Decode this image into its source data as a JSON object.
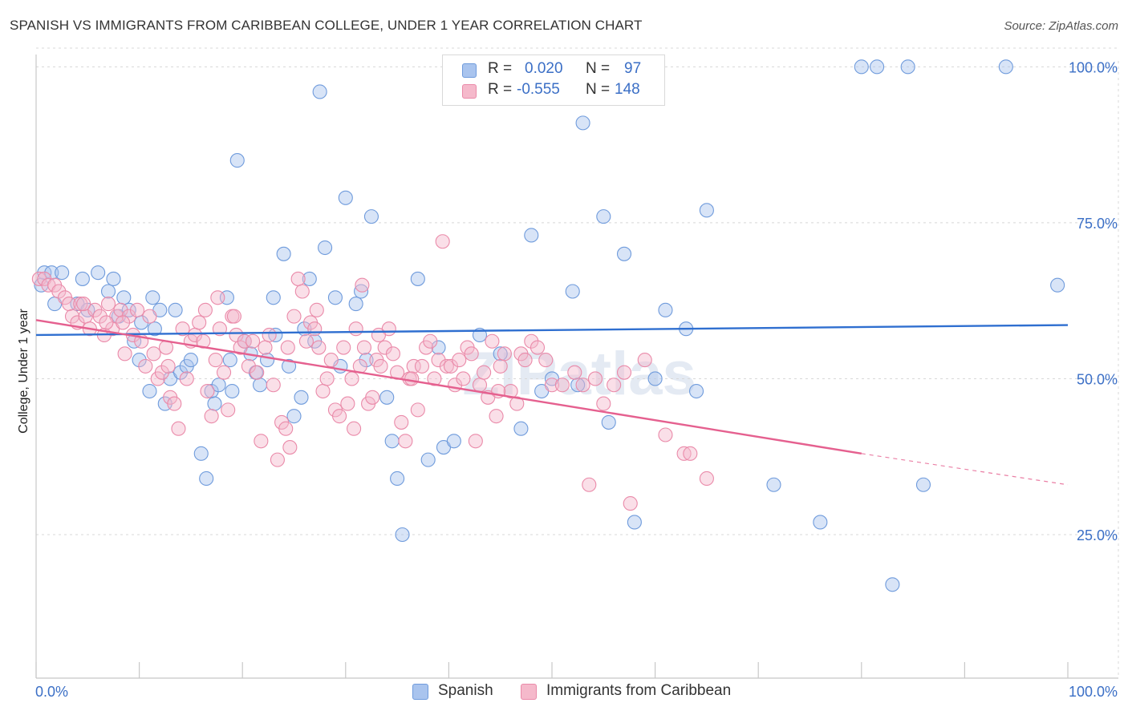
{
  "title": "SPANISH VS IMMIGRANTS FROM CARIBBEAN COLLEGE, UNDER 1 YEAR CORRELATION CHART",
  "source": "Source: ZipAtlas.com",
  "watermark": "ZIPatlas",
  "legend": {
    "r_label": "R =",
    "n_label": "N =",
    "rows": [
      {
        "r": "0.020",
        "n": "97"
      },
      {
        "r": "-0.555",
        "n": "148"
      }
    ]
  },
  "chart_data": {
    "type": "scatter",
    "title": "SPANISH VS IMMIGRANTS FROM CARIBBEAN COLLEGE, UNDER 1 YEAR CORRELATION CHART",
    "xlabel": "",
    "ylabel": "College, Under 1 year",
    "xlim": [
      0,
      100
    ],
    "ylim": [
      2,
      103
    ],
    "x_tick_labels": [
      "0.0%",
      "100.0%"
    ],
    "y_ticks": [
      25,
      50,
      75,
      100
    ],
    "y_tick_labels": [
      "25.0%",
      "50.0%",
      "75.0%",
      "100.0%"
    ],
    "grid": true,
    "legend_position": "top-center",
    "colors": {
      "Spanish": {
        "fill": "#a9c4ee",
        "stroke": "#6f9bdc",
        "line": "#2f6fd0"
      },
      "Immigrants from Caribbean": {
        "fill": "#f5b9cb",
        "stroke": "#ea8aa9",
        "line": "#e5608f"
      },
      "tick_label": "#3b6fc6"
    },
    "series": [
      {
        "name": "Spanish",
        "r": 0.02,
        "n": 97,
        "trend": {
          "x": [
            0,
            100
          ],
          "y": [
            57.0,
            58.6
          ]
        },
        "points": [
          [
            0.5,
            65
          ],
          [
            0.8,
            67
          ],
          [
            1.5,
            67
          ],
          [
            2.5,
            67
          ],
          [
            1.8,
            62
          ],
          [
            4,
            62
          ],
          [
            5,
            61
          ],
          [
            4.5,
            66
          ],
          [
            6,
            67
          ],
          [
            7,
            64
          ],
          [
            7.5,
            66
          ],
          [
            8,
            60
          ],
          [
            9,
            61
          ],
          [
            8.5,
            63
          ],
          [
            9.5,
            56
          ],
          [
            10,
            53
          ],
          [
            10.2,
            59
          ],
          [
            11,
            48
          ],
          [
            11.3,
            63
          ],
          [
            11.5,
            58
          ],
          [
            12,
            61
          ],
          [
            12.5,
            46
          ],
          [
            13,
            50
          ],
          [
            13.5,
            61
          ],
          [
            14,
            51
          ],
          [
            14.6,
            52
          ],
          [
            15,
            53
          ],
          [
            16,
            38
          ],
          [
            16.5,
            34
          ],
          [
            17,
            48
          ],
          [
            17.3,
            46
          ],
          [
            17.7,
            49
          ],
          [
            18.5,
            63
          ],
          [
            18.8,
            53
          ],
          [
            19,
            48
          ],
          [
            19.5,
            85
          ],
          [
            20.2,
            56
          ],
          [
            20.8,
            54
          ],
          [
            21.3,
            51
          ],
          [
            21.7,
            49
          ],
          [
            22.4,
            53
          ],
          [
            23,
            63
          ],
          [
            23.2,
            57
          ],
          [
            24,
            70
          ],
          [
            24.5,
            52
          ],
          [
            25,
            44
          ],
          [
            25.7,
            47
          ],
          [
            26,
            58
          ],
          [
            26.5,
            66
          ],
          [
            27,
            56
          ],
          [
            27.5,
            96
          ],
          [
            28,
            71
          ],
          [
            29,
            63
          ],
          [
            29.5,
            52
          ],
          [
            30,
            79
          ],
          [
            31,
            62
          ],
          [
            31.5,
            64
          ],
          [
            32,
            53
          ],
          [
            32.5,
            76
          ],
          [
            34,
            47
          ],
          [
            34.5,
            40
          ],
          [
            35,
            34
          ],
          [
            35.5,
            25
          ],
          [
            37,
            66
          ],
          [
            38,
            37
          ],
          [
            39,
            55
          ],
          [
            39.5,
            39
          ],
          [
            40.5,
            40
          ],
          [
            43,
            57
          ],
          [
            45,
            54
          ],
          [
            47,
            42
          ],
          [
            48,
            73
          ],
          [
            49,
            48
          ],
          [
            50,
            50
          ],
          [
            52,
            64
          ],
          [
            52.5,
            49
          ],
          [
            53,
            91
          ],
          [
            55,
            76
          ],
          [
            55.5,
            43
          ],
          [
            57,
            70
          ],
          [
            58,
            27
          ],
          [
            60,
            50
          ],
          [
            61,
            61
          ],
          [
            63,
            58
          ],
          [
            64,
            48
          ],
          [
            65,
            77
          ],
          [
            71.5,
            33
          ],
          [
            76,
            27
          ],
          [
            80,
            100
          ],
          [
            81.5,
            100
          ],
          [
            83,
            17
          ],
          [
            84.5,
            100
          ],
          [
            86,
            33
          ],
          [
            94,
            100
          ],
          [
            99,
            65
          ]
        ]
      },
      {
        "name": "Immigrants from Caribbean",
        "r": -0.555,
        "n": 148,
        "trend": {
          "x": [
            0,
            80
          ],
          "y": [
            59.4,
            38.0
          ]
        },
        "trend_dashed": {
          "x": [
            80,
            100
          ],
          "y": [
            38.0,
            33.0
          ]
        },
        "points": [
          [
            0.3,
            66
          ],
          [
            0.8,
            66
          ],
          [
            1.2,
            65
          ],
          [
            1.8,
            65
          ],
          [
            2.2,
            64
          ],
          [
            2.8,
            63
          ],
          [
            3.2,
            62
          ],
          [
            3.5,
            60
          ],
          [
            4,
            59
          ],
          [
            4.3,
            62
          ],
          [
            4.8,
            60
          ],
          [
            5.2,
            58
          ],
          [
            5.7,
            61
          ],
          [
            6.2,
            60
          ],
          [
            6.6,
            57
          ],
          [
            7,
            62
          ],
          [
            7.4,
            58
          ],
          [
            7.8,
            60
          ],
          [
            8.2,
            61
          ],
          [
            8.6,
            54
          ],
          [
            9,
            60
          ],
          [
            9.4,
            57
          ],
          [
            9.8,
            61
          ],
          [
            10.2,
            56
          ],
          [
            10.6,
            52
          ],
          [
            11,
            60
          ],
          [
            11.4,
            54
          ],
          [
            11.8,
            50
          ],
          [
            12.2,
            51
          ],
          [
            12.6,
            55
          ],
          [
            13,
            47
          ],
          [
            13.4,
            46
          ],
          [
            13.8,
            42
          ],
          [
            14.2,
            58
          ],
          [
            14.6,
            50
          ],
          [
            15,
            56
          ],
          [
            15.4,
            57
          ],
          [
            15.8,
            59
          ],
          [
            16.2,
            56
          ],
          [
            16.6,
            48
          ],
          [
            17,
            44
          ],
          [
            17.4,
            53
          ],
          [
            17.8,
            58
          ],
          [
            18.2,
            51
          ],
          [
            18.6,
            45
          ],
          [
            19,
            60
          ],
          [
            19.4,
            57
          ],
          [
            19.8,
            55
          ],
          [
            20.2,
            56
          ],
          [
            20.6,
            52
          ],
          [
            21,
            56
          ],
          [
            21.4,
            51
          ],
          [
            21.8,
            40
          ],
          [
            22.2,
            55
          ],
          [
            22.6,
            57
          ],
          [
            23,
            49
          ],
          [
            23.4,
            37
          ],
          [
            23.8,
            43
          ],
          [
            24.2,
            42
          ],
          [
            24.6,
            39
          ],
          [
            25,
            60
          ],
          [
            25.4,
            66
          ],
          [
            25.8,
            64
          ],
          [
            26.2,
            56
          ],
          [
            26.6,
            59
          ],
          [
            27,
            58
          ],
          [
            27.4,
            55
          ],
          [
            27.8,
            48
          ],
          [
            28.2,
            50
          ],
          [
            28.6,
            53
          ],
          [
            29,
            45
          ],
          [
            29.4,
            44
          ],
          [
            29.8,
            55
          ],
          [
            30.2,
            46
          ],
          [
            30.6,
            50
          ],
          [
            31,
            58
          ],
          [
            31.4,
            52
          ],
          [
            31.8,
            55
          ],
          [
            32.2,
            46
          ],
          [
            32.6,
            47
          ],
          [
            33,
            53
          ],
          [
            33.4,
            52
          ],
          [
            33.8,
            55
          ],
          [
            34.2,
            58
          ],
          [
            34.6,
            54
          ],
          [
            35,
            51
          ],
          [
            35.4,
            43
          ],
          [
            35.8,
            40
          ],
          [
            36.2,
            50
          ],
          [
            36.6,
            52
          ],
          [
            37,
            45
          ],
          [
            37.4,
            52
          ],
          [
            37.8,
            55
          ],
          [
            38.2,
            56
          ],
          [
            38.6,
            50
          ],
          [
            39,
            53
          ],
          [
            39.4,
            72
          ],
          [
            39.8,
            52
          ],
          [
            40.2,
            52
          ],
          [
            40.6,
            49
          ],
          [
            41,
            53
          ],
          [
            41.4,
            50
          ],
          [
            41.8,
            55
          ],
          [
            42.2,
            54
          ],
          [
            42.6,
            40
          ],
          [
            43,
            49
          ],
          [
            43.4,
            51
          ],
          [
            43.8,
            47
          ],
          [
            44.2,
            56
          ],
          [
            44.6,
            44
          ],
          [
            45,
            52
          ],
          [
            45.4,
            54
          ],
          [
            46,
            48
          ],
          [
            46.6,
            46
          ],
          [
            47,
            54
          ],
          [
            47.4,
            53
          ],
          [
            48,
            56
          ],
          [
            48.6,
            55
          ],
          [
            49.4,
            53
          ],
          [
            50,
            49
          ],
          [
            51,
            49
          ],
          [
            52.2,
            51
          ],
          [
            53,
            49
          ],
          [
            53.6,
            33
          ],
          [
            54.2,
            50
          ],
          [
            55,
            46
          ],
          [
            56,
            49
          ],
          [
            57,
            51
          ],
          [
            57.6,
            30
          ],
          [
            59,
            53
          ],
          [
            61,
            41
          ],
          [
            62.8,
            38
          ],
          [
            63.4,
            38
          ],
          [
            65,
            34
          ],
          [
            4.6,
            62
          ],
          [
            6.8,
            59
          ],
          [
            8.4,
            59
          ],
          [
            12.8,
            52
          ],
          [
            16.4,
            61
          ],
          [
            19.2,
            60
          ],
          [
            24.4,
            55
          ],
          [
            27.2,
            61
          ],
          [
            30.8,
            42
          ],
          [
            33.2,
            57
          ],
          [
            36.4,
            50
          ],
          [
            44.8,
            48
          ],
          [
            31.6,
            65
          ],
          [
            17.6,
            63
          ]
        ]
      }
    ]
  }
}
